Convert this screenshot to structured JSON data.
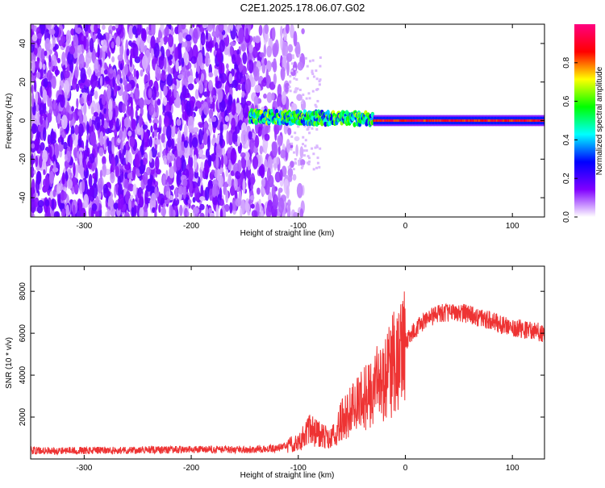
{
  "page": {
    "title": "C2E1.2025.178.06.07.G02"
  },
  "chart_data": [
    {
      "type": "heatmap",
      "title": "C2E1.2025.178.06.07.G02",
      "xlabel": "Height of straight line (km)",
      "ylabel": "Frequency (Hz)",
      "xlim": [
        -350,
        130
      ],
      "ylim": [
        -50,
        50
      ],
      "xticks": [
        -300,
        -200,
        -100,
        0,
        100
      ],
      "yticks": [
        -40,
        -20,
        0,
        20,
        40
      ],
      "grid": false,
      "colorbar": {
        "label": "Normalized spectral amplitude",
        "range": [
          0,
          1
        ],
        "ticks": [
          0.0,
          0.2,
          0.4,
          0.6,
          0.8
        ],
        "colors": [
          "#ffffff",
          "#8000ff",
          "#0000ff",
          "#00ffff",
          "#00ff00",
          "#ffff00",
          "#ff0000",
          "#ff0080"
        ]
      },
      "features": [
        {
          "x_range": [
            -350,
            -105
          ],
          "freq_range": [
            -50,
            50
          ],
          "amplitude": 0.12,
          "description_label": ""
        },
        {
          "x_range": [
            -145,
            -30
          ],
          "freq_center": 2,
          "freq_halfwidth": 4,
          "amplitude": 0.5
        },
        {
          "x_range": [
            -30,
            130
          ],
          "freq_center": 0,
          "freq_halfwidth": 2,
          "amplitude": 0.95
        }
      ]
    },
    {
      "type": "line",
      "xlabel": "Height of straight line (km)",
      "ylabel": "SNR (10 * v/v)",
      "xlim": [
        -350,
        130
      ],
      "ylim": [
        0,
        9200
      ],
      "xticks": [
        -300,
        -200,
        -100,
        0,
        100
      ],
      "yticks": [
        2000,
        4000,
        6000,
        8000
      ],
      "grid": false,
      "series": [
        {
          "color": "#ee3333",
          "x": [
            -350,
            -300,
            -250,
            -200,
            -150,
            -120,
            -100,
            -90,
            -80,
            -70,
            -60,
            -50,
            -40,
            -30,
            -25,
            -20,
            -15,
            -10,
            -5,
            0,
            10,
            20,
            30,
            40,
            50,
            60,
            70,
            80,
            90,
            100,
            110,
            120,
            130
          ],
          "y": [
            400,
            400,
            420,
            450,
            450,
            500,
            800,
            1400,
            1200,
            900,
            1800,
            2300,
            2800,
            3200,
            3800,
            3500,
            4200,
            4600,
            4800,
            5600,
            6200,
            6700,
            6900,
            7000,
            7000,
            6900,
            6700,
            6600,
            6400,
            6300,
            6200,
            6100,
            6000
          ]
        }
      ]
    }
  ]
}
